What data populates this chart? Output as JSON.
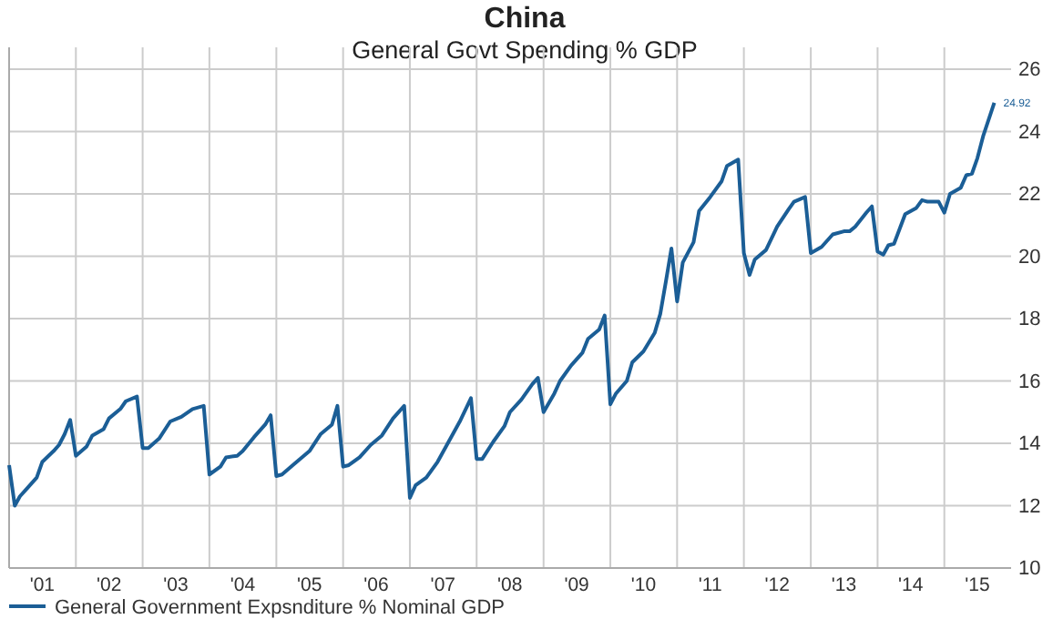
{
  "chart_data": {
    "type": "line",
    "title": "China",
    "subtitle": "General Govt Spending % GDP",
    "x": [
      "2001-01",
      "2001-02",
      "2001-03",
      "2001-04",
      "2001-06",
      "2001-07",
      "2001-09",
      "2001-10",
      "2001-11",
      "2001-12",
      "2002-01",
      "2002-03",
      "2002-04",
      "2002-06",
      "2002-07",
      "2002-09",
      "2002-10",
      "2002-12",
      "2003-01",
      "2003-02",
      "2003-04",
      "2003-06",
      "2003-08",
      "2003-10",
      "2003-12",
      "2004-01",
      "2004-03",
      "2004-04",
      "2004-06",
      "2004-07",
      "2004-09",
      "2004-11",
      "2004-12",
      "2005-01",
      "2005-02",
      "2005-04",
      "2005-07",
      "2005-09",
      "2005-11",
      "2005-12",
      "2006-01",
      "2006-02",
      "2006-04",
      "2006-06",
      "2006-08",
      "2006-10",
      "2006-12",
      "2007-01",
      "2007-02",
      "2007-04",
      "2007-06",
      "2007-08",
      "2007-10",
      "2007-12",
      "2008-01",
      "2008-02",
      "2008-04",
      "2008-06",
      "2008-07",
      "2008-09",
      "2008-11",
      "2008-12",
      "2009-01",
      "2009-03",
      "2009-04",
      "2009-06",
      "2009-08",
      "2009-09",
      "2009-11",
      "2009-12",
      "2010-01",
      "2010-02",
      "2010-04",
      "2010-05",
      "2010-07",
      "2010-09",
      "2010-10",
      "2010-11",
      "2010-12",
      "2011-01",
      "2011-02",
      "2011-04",
      "2011-05",
      "2011-07",
      "2011-09",
      "2011-10",
      "2011-12",
      "2012-01",
      "2012-02",
      "2012-03",
      "2012-05",
      "2012-07",
      "2012-09",
      "2012-10",
      "2012-12",
      "2013-01",
      "2013-03",
      "2013-05",
      "2013-07",
      "2013-08",
      "2013-09",
      "2013-11",
      "2013-12",
      "2014-01",
      "2014-02",
      "2014-03",
      "2014-04",
      "2014-06",
      "2014-08",
      "2014-09",
      "2014-10",
      "2014-12",
      "2015-01",
      "2015-02",
      "2015-04",
      "2015-05",
      "2015-06",
      "2015-07",
      "2015-08",
      "2015-10"
    ],
    "series": [
      {
        "name": "General Government Expsnditure % Nominal GDP",
        "color": "#1b5e96",
        "values": [
          13.3,
          12.0,
          12.3,
          12.5,
          12.9,
          13.4,
          13.75,
          13.95,
          14.3,
          14.75,
          13.6,
          13.9,
          14.25,
          14.45,
          14.8,
          15.1,
          15.35,
          15.5,
          13.85,
          13.85,
          14.15,
          14.7,
          14.85,
          15.1,
          15.2,
          13.0,
          13.25,
          13.55,
          13.6,
          13.75,
          14.2,
          14.6,
          14.9,
          12.95,
          13.0,
          13.3,
          13.75,
          14.3,
          14.6,
          15.2,
          13.25,
          13.3,
          13.55,
          13.95,
          14.25,
          14.8,
          15.2,
          12.25,
          12.65,
          12.9,
          13.4,
          14.05,
          14.7,
          15.45,
          13.5,
          13.5,
          14.05,
          14.55,
          15.0,
          15.4,
          15.9,
          16.1,
          15.0,
          15.6,
          16.0,
          16.5,
          16.9,
          17.35,
          17.65,
          18.1,
          15.25,
          15.6,
          16.0,
          16.6,
          16.95,
          17.55,
          18.15,
          19.2,
          20.25,
          18.55,
          19.8,
          20.45,
          21.45,
          21.9,
          22.4,
          22.9,
          23.1,
          20.1,
          19.4,
          19.9,
          20.2,
          20.95,
          21.5,
          21.75,
          21.9,
          20.1,
          20.3,
          20.7,
          20.8,
          20.8,
          20.95,
          21.4,
          21.6,
          20.15,
          20.05,
          20.35,
          20.4,
          21.35,
          21.55,
          21.8,
          21.75,
          21.75,
          21.4,
          22.0,
          22.2,
          22.6,
          22.65,
          23.15,
          23.85,
          24.92
        ],
        "value_labels": [
          null,
          null,
          null,
          null,
          null,
          null,
          null,
          null,
          null,
          null,
          null,
          null,
          null,
          null,
          null,
          null,
          null,
          null,
          null,
          null,
          null,
          null,
          null,
          null,
          null,
          null,
          null,
          null,
          null,
          null,
          null,
          null,
          null,
          null,
          null,
          null,
          null,
          null,
          null,
          null,
          null,
          null,
          null,
          null,
          null,
          null,
          null,
          null,
          null,
          null,
          null,
          null,
          null,
          null,
          null,
          null,
          null,
          null,
          null,
          null,
          null,
          null,
          null,
          null,
          null,
          null,
          null,
          null,
          null,
          null,
          null,
          null,
          null,
          null,
          null,
          null,
          null,
          null,
          null,
          null,
          null,
          null,
          null,
          null,
          null,
          null,
          null,
          null,
          null,
          null,
          null,
          null,
          null,
          null,
          null,
          null,
          null,
          null,
          null,
          null,
          null,
          null,
          null,
          null,
          null,
          null,
          null,
          null,
          null,
          null,
          null,
          null,
          null,
          null,
          null,
          null,
          null,
          null,
          null,
          "24.92"
        ]
      }
    ],
    "xlim": [
      "2001-01",
      "2016-01"
    ],
    "xticks": [
      {
        "value": "2001-01",
        "label": null
      },
      {
        "value": "2001-07",
        "label": "'01"
      },
      {
        "value": "2002-01",
        "label": null
      },
      {
        "value": "2002-07",
        "label": "'02"
      },
      {
        "value": "2003-01",
        "label": null
      },
      {
        "value": "2003-07",
        "label": "'03"
      },
      {
        "value": "2004-01",
        "label": null
      },
      {
        "value": "2004-07",
        "label": "'04"
      },
      {
        "value": "2005-01",
        "label": null
      },
      {
        "value": "2005-07",
        "label": "'05"
      },
      {
        "value": "2006-01",
        "label": null
      },
      {
        "value": "2006-07",
        "label": "'06"
      },
      {
        "value": "2007-01",
        "label": null
      },
      {
        "value": "2007-07",
        "label": "'07"
      },
      {
        "value": "2008-01",
        "label": null
      },
      {
        "value": "2008-07",
        "label": "'08"
      },
      {
        "value": "2009-01",
        "label": null
      },
      {
        "value": "2009-07",
        "label": "'09"
      },
      {
        "value": "2010-01",
        "label": null
      },
      {
        "value": "2010-07",
        "label": "'10"
      },
      {
        "value": "2011-01",
        "label": null
      },
      {
        "value": "2011-07",
        "label": "'11"
      },
      {
        "value": "2012-01",
        "label": null
      },
      {
        "value": "2012-07",
        "label": "'12"
      },
      {
        "value": "2013-01",
        "label": null
      },
      {
        "value": "2013-07",
        "label": "'13"
      },
      {
        "value": "2014-01",
        "label": null
      },
      {
        "value": "2014-07",
        "label": "'14"
      },
      {
        "value": "2015-01",
        "label": null
      },
      {
        "value": "2015-07",
        "label": "'15"
      }
    ],
    "ylim": [
      10,
      26
    ],
    "yticks": [
      10,
      12,
      14,
      16,
      18,
      20,
      22,
      24,
      26
    ],
    "grid": true,
    "legend": "bottom left",
    "line_style": "solid",
    "marker": "none"
  }
}
